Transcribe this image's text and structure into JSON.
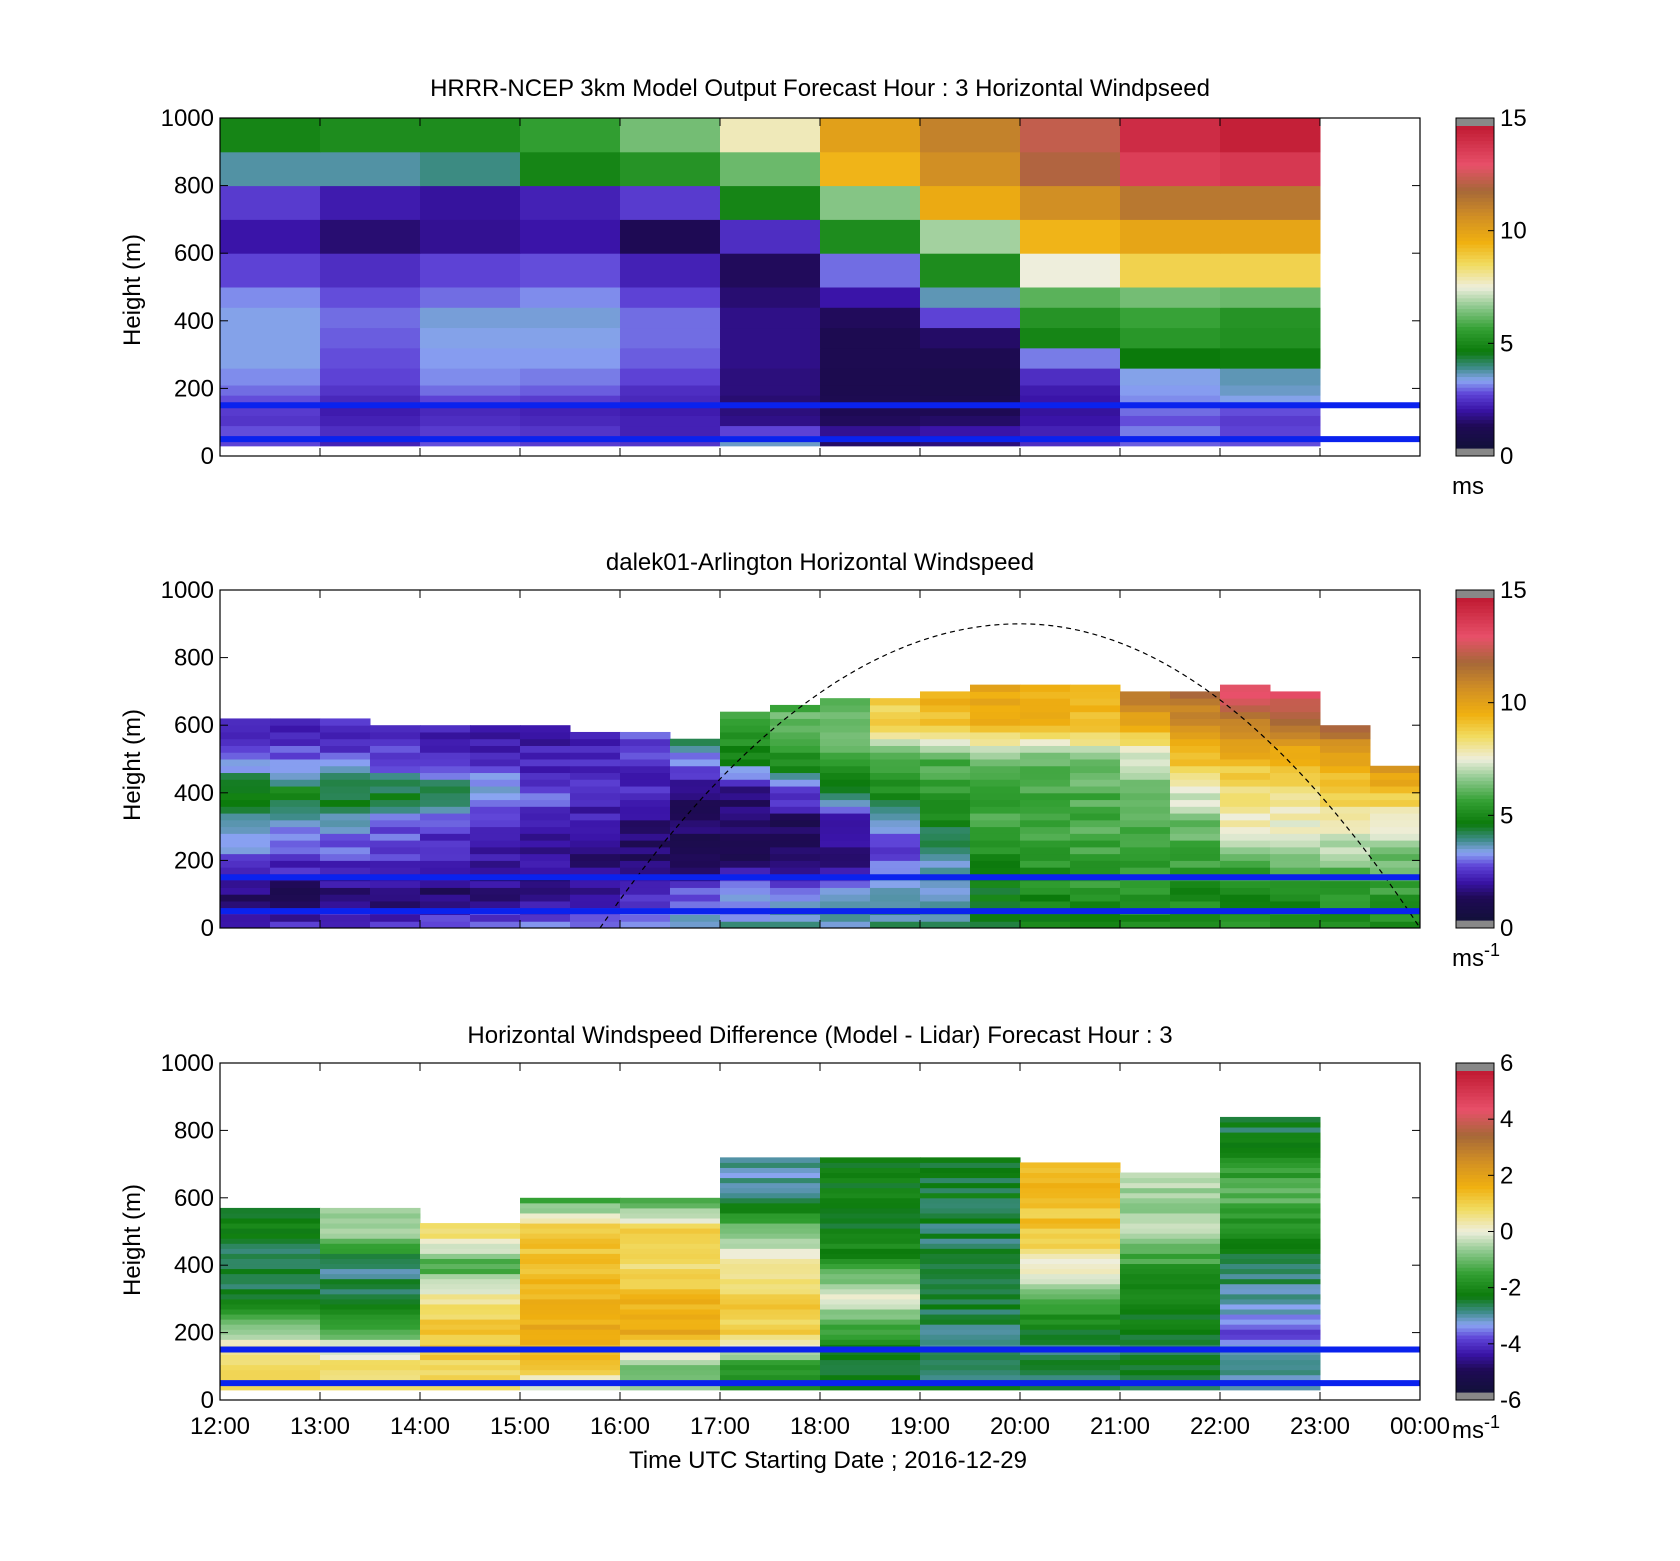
{
  "figure": {
    "xlabel": "Time UTC  Starting Date ; 2016-12-29",
    "xticks": [
      "12:00",
      "13:00",
      "14:00",
      "15:00",
      "16:00",
      "17:00",
      "18:00",
      "19:00",
      "20:00",
      "21:00",
      "22:00",
      "23:00",
      "00:00"
    ]
  },
  "chart_data": [
    {
      "type": "heatmap",
      "title": "HRRR-NCEP 3km Model Output   Forecast Hour : 3 Horizontal Windpseed",
      "ylabel": "Height (m)",
      "ylim": [
        0,
        1000
      ],
      "yticks": [
        "0",
        "200",
        "400",
        "600",
        "800",
        "1000"
      ],
      "colorbar": {
        "ticks": [
          "0",
          "5",
          "10",
          "15"
        ],
        "tick_values": [
          0,
          5,
          10,
          15
        ],
        "range": [
          0,
          15
        ],
        "unit": "ms",
        "unit_exp": ""
      },
      "reference_lines_m": [
        150,
        50
      ],
      "x_hours": [
        12,
        13,
        14,
        15,
        16,
        17,
        18,
        19,
        20,
        21,
        22
      ],
      "y_edges": [
        30,
        60,
        90,
        120,
        150,
        180,
        210,
        260,
        320,
        380,
        440,
        500,
        600,
        700,
        800,
        900,
        1000
      ],
      "values": [
        [
          2.5,
          2.0,
          2.6,
          2.4,
          2.3,
          3.4,
          1.2,
          1.4,
          2.2,
          2.7,
          2.6
        ],
        [
          2.6,
          2.2,
          2.4,
          2.3,
          2.0,
          2.5,
          1.6,
          1.8,
          2.0,
          2.9,
          2.5
        ],
        [
          2.3,
          2.0,
          2.2,
          2.1,
          2.0,
          1.5,
          1.1,
          1.2,
          1.8,
          2.6,
          2.4
        ],
        [
          2.4,
          1.9,
          2.1,
          2.0,
          1.9,
          1.4,
          1.0,
          1.0,
          1.7,
          2.8,
          2.6
        ],
        [
          2.6,
          2.1,
          2.5,
          2.4,
          2.1,
          1.3,
          0.9,
          0.8,
          1.8,
          3.0,
          3.2
        ],
        [
          2.8,
          2.3,
          2.8,
          2.7,
          2.2,
          1.4,
          0.8,
          0.7,
          1.9,
          3.1,
          3.4
        ],
        [
          3.0,
          2.5,
          3.0,
          2.9,
          2.5,
          1.4,
          0.8,
          0.7,
          2.2,
          3.2,
          3.5
        ],
        [
          3.2,
          2.6,
          3.1,
          3.1,
          2.7,
          1.5,
          0.9,
          0.9,
          2.9,
          4.5,
          4.6
        ],
        [
          3.2,
          2.7,
          3.2,
          3.2,
          2.8,
          1.5,
          0.9,
          1.2,
          4.8,
          5.3,
          5.1
        ],
        [
          3.2,
          2.8,
          3.3,
          3.3,
          2.8,
          1.5,
          1.1,
          2.5,
          5.2,
          5.6,
          5.2
        ],
        [
          3.0,
          2.6,
          2.8,
          3.0,
          2.5,
          1.3,
          1.8,
          3.5,
          6.0,
          6.3,
          6.2
        ],
        [
          2.5,
          2.2,
          2.5,
          2.6,
          2.0,
          1.1,
          2.8,
          5.0,
          7.5,
          8.8,
          8.8
        ],
        [
          1.8,
          1.3,
          1.6,
          1.8,
          1.0,
          2.2,
          5.0,
          6.8,
          9.5,
          10.0,
          10.0
        ],
        [
          2.4,
          1.9,
          1.7,
          2.0,
          2.4,
          4.8,
          6.5,
          9.8,
          10.8,
          11.5,
          11.5
        ],
        [
          3.6,
          3.6,
          3.8,
          4.8,
          5.2,
          6.2,
          9.5,
          10.8,
          12.2,
          13.8,
          14.0
        ],
        [
          4.8,
          5.0,
          5.0,
          5.5,
          6.3,
          7.8,
          10.2,
          11.2,
          12.5,
          14.4,
          14.8
        ]
      ]
    },
    {
      "type": "heatmap",
      "title": "dalek01-Arlington  Horizontal Windspeed",
      "ylabel": "Height (m)",
      "ylim": [
        0,
        1000
      ],
      "yticks": [
        "0",
        "200",
        "400",
        "600",
        "800",
        "1000"
      ],
      "colorbar": {
        "ticks": [
          "0",
          "5",
          "10",
          "15"
        ],
        "tick_values": [
          0,
          5,
          10,
          15
        ],
        "range": [
          0,
          15
        ],
        "unit": "ms",
        "unit_exp": "-1"
      },
      "reference_lines_m": [
        150,
        50
      ],
      "sun_curve": {
        "start_hour": 15.8,
        "peak_hour": 20.0,
        "peak_height_m": 900,
        "end_hour": 24.0
      },
      "profile_hours": [
        12.0,
        12.5,
        13.0,
        13.5,
        14.0,
        14.5,
        15.0,
        15.5,
        16.0,
        16.5,
        17.0,
        17.5,
        18.0,
        18.5,
        19.0,
        19.5,
        20.0,
        20.5,
        21.0,
        21.5,
        22.0,
        22.5,
        23.0,
        23.5
      ],
      "profile_top_m": [
        620,
        620,
        610,
        600,
        590,
        600,
        590,
        580,
        570,
        560,
        640,
        660,
        670,
        680,
        700,
        710,
        720,
        720,
        700,
        700,
        720,
        700,
        600,
        470
      ],
      "height_levels_m": [
        0,
        100,
        200,
        300,
        400,
        500,
        600,
        700
      ],
      "profiles": [
        [
          2.4,
          1.2,
          2.6,
          3.5,
          5.0,
          2.8,
          2.1,
          null
        ],
        [
          2.2,
          1.1,
          2.3,
          3.2,
          4.8,
          2.6,
          2.0,
          null
        ],
        [
          2.5,
          1.3,
          2.4,
          3.1,
          4.6,
          2.5,
          2.0,
          null
        ],
        [
          2.6,
          1.2,
          2.2,
          2.8,
          4.4,
          2.4,
          2.0,
          null
        ],
        [
          2.8,
          1.3,
          2.0,
          2.4,
          4.2,
          2.3,
          2.0,
          null
        ],
        [
          3.0,
          1.4,
          1.8,
          2.1,
          3.4,
          2.1,
          1.8,
          null
        ],
        [
          3.1,
          1.5,
          1.6,
          1.9,
          2.8,
          2.0,
          1.7,
          null
        ],
        [
          3.2,
          1.6,
          1.4,
          1.6,
          2.4,
          1.9,
          1.6,
          null
        ],
        [
          3.3,
          2.2,
          1.3,
          1.3,
          2.0,
          2.3,
          3.0,
          null
        ],
        [
          3.4,
          2.6,
          1.2,
          1.1,
          1.5,
          3.0,
          4.8,
          null
        ],
        [
          3.5,
          3.0,
          1.2,
          1.0,
          1.4,
          4.5,
          5.8,
          5.5
        ],
        [
          3.6,
          3.2,
          1.3,
          1.0,
          2.5,
          5.2,
          6.2,
          5.8
        ],
        [
          3.6,
          3.4,
          1.4,
          1.5,
          3.8,
          5.5,
          6.6,
          6.0
        ],
        [
          3.7,
          3.5,
          2.5,
          3.0,
          4.8,
          5.8,
          8.8,
          9.0
        ],
        [
          3.8,
          3.6,
          3.4,
          4.5,
          5.2,
          6.0,
          9.2,
          9.5
        ],
        [
          4.2,
          4.6,
          4.8,
          5.5,
          5.8,
          6.2,
          9.5,
          9.8
        ],
        [
          4.5,
          5.0,
          5.2,
          5.6,
          5.6,
          6.0,
          9.6,
          9.8
        ],
        [
          4.8,
          5.2,
          5.5,
          5.8,
          5.8,
          6.5,
          9.4,
          9.6
        ],
        [
          5.0,
          5.2,
          5.6,
          6.0,
          6.0,
          7.2,
          9.5,
          11.5
        ],
        [
          5.2,
          5.0,
          5.6,
          6.2,
          7.5,
          9.2,
          10.5,
          12.0
        ],
        [
          5.2,
          5.0,
          5.8,
          7.8,
          8.2,
          9.5,
          11.0,
          13.0
        ],
        [
          5.0,
          4.8,
          6.2,
          7.6,
          8.4,
          9.6,
          11.4,
          13.2
        ],
        [
          5.0,
          5.2,
          6.4,
          7.8,
          8.8,
          9.8,
          12.0,
          null
        ],
        [
          4.8,
          5.4,
          6.2,
          7.4,
          9.0,
          11.4,
          null,
          null
        ]
      ]
    },
    {
      "type": "heatmap",
      "title": "Horizontal Windspeed Difference (Model - Lidar) Forecast Hour : 3",
      "ylabel": "Height (m)",
      "ylim": [
        0,
        1000
      ],
      "yticks": [
        "0",
        "200",
        "400",
        "600",
        "800",
        "1000"
      ],
      "colorbar": {
        "ticks": [
          "-6",
          "-4",
          "-2",
          "0",
          "2",
          "4",
          "6"
        ],
        "tick_values": [
          -6,
          -4,
          -2,
          0,
          2,
          4,
          6
        ],
        "range": [
          -6,
          6
        ],
        "unit": "ms",
        "unit_exp": "-1"
      },
      "reference_lines_m": [
        150,
        50
      ],
      "x_hours": [
        12,
        13,
        14,
        15,
        16,
        17,
        18,
        19,
        20,
        21,
        22
      ],
      "column_top_m": [
        570,
        570,
        520,
        600,
        600,
        710,
        710,
        710,
        700,
        670,
        830
      ],
      "height_levels_m": [
        0,
        100,
        200,
        300,
        400,
        500,
        600,
        700,
        800
      ],
      "profiles": [
        [
          1.0,
          1.2,
          -0.5,
          -2.5,
          -2.8,
          -2.4,
          null,
          null,
          null
        ],
        [
          1.0,
          0.8,
          -1.0,
          -2.6,
          -3.0,
          -0.5,
          null,
          null,
          null
        ],
        [
          1.2,
          1.0,
          1.4,
          0.5,
          -1.5,
          0.8,
          null,
          null,
          null
        ],
        [
          -0.5,
          1.0,
          2.0,
          1.6,
          1.2,
          1.4,
          -1.5,
          null,
          null
        ],
        [
          -0.5,
          -0.8,
          1.8,
          1.6,
          0.6,
          1.2,
          -1.8,
          null,
          null
        ],
        [
          -1.5,
          -1.8,
          1.2,
          1.0,
          0.4,
          -0.8,
          -3.0,
          -3.2,
          null
        ],
        [
          -2.2,
          -2.5,
          -1.8,
          0.2,
          -1.8,
          -2.4,
          -2.2,
          -2.4,
          null
        ],
        [
          -2.4,
          -3.0,
          -2.8,
          -2.6,
          -2.7,
          -2.8,
          -2.5,
          -2.6,
          null
        ],
        [
          -2.5,
          -2.8,
          -2.6,
          -1.0,
          0.2,
          1.2,
          1.4,
          1.6,
          null
        ],
        [
          -2.8,
          -2.6,
          -2.4,
          -2.2,
          -1.6,
          -0.6,
          -0.5,
          -0.6,
          null
        ],
        [
          -3.0,
          -3.2,
          -4.0,
          -3.0,
          -2.8,
          -2.2,
          -1.2,
          -1.8,
          -2.6
        ]
      ]
    }
  ]
}
